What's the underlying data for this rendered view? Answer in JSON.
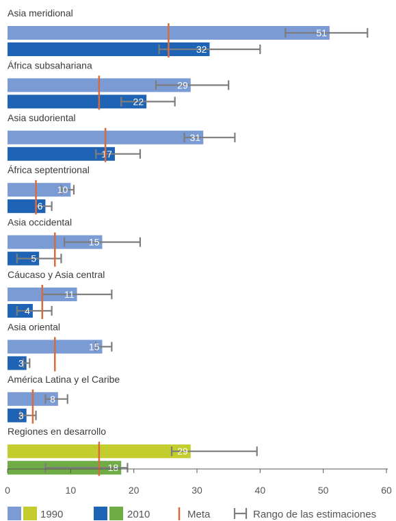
{
  "chart_data": {
    "type": "bar",
    "orientation": "horizontal",
    "xlim": [
      0,
      60
    ],
    "xticks": [
      0,
      10,
      20,
      30,
      40,
      50,
      60
    ],
    "grid": false,
    "legend_position": "bottom",
    "series": [
      {
        "key": "1990",
        "name": "1990",
        "colors": [
          "#7b9bd4",
          "#c3cd2d"
        ]
      },
      {
        "key": "2010",
        "name": "2010",
        "colors": [
          "#1f63b5",
          "#6fac46"
        ]
      }
    ],
    "legend": {
      "items": [
        "1990",
        "2010",
        "Meta",
        "Rango de las estimaciones"
      ]
    },
    "colors": {
      "bar_1990": "#7b9bd4",
      "bar_2010": "#1f63b5",
      "dev_1990": "#c3cd2d",
      "dev_2010": "#6fac46",
      "meta": "#d96a3b",
      "range": "#7d7d7d"
    },
    "groups": [
      {
        "label": "Asia meridional",
        "v1990": 51,
        "r1990": [
          44,
          57
        ],
        "v2010": 32,
        "r2010": [
          24,
          40
        ],
        "meta": 25.5
      },
      {
        "label": "África subsahariana",
        "v1990": 29,
        "r1990": [
          23.5,
          35
        ],
        "v2010": 22,
        "r2010": [
          18,
          26.5
        ],
        "meta": 14.5
      },
      {
        "label": "Asia sudoriental",
        "v1990": 31,
        "r1990": [
          28,
          36
        ],
        "v2010": 17,
        "r2010": [
          14,
          21
        ],
        "meta": 15.5
      },
      {
        "label": "África septentrional",
        "v1990": 10,
        "r1990": [
          8.5,
          10.5
        ],
        "v2010": 6,
        "r2010": [
          4.5,
          7
        ],
        "meta": 4.5
      },
      {
        "label": "Asia occidental",
        "v1990": 15,
        "r1990": [
          9,
          21
        ],
        "v2010": 5,
        "r2010": [
          1.5,
          8.5
        ],
        "meta": 7.5
      },
      {
        "label": "Cáucaso y Asia central",
        "v1990": 11,
        "r1990": [
          5.5,
          16.5
        ],
        "v2010": 4,
        "r2010": [
          1.5,
          7
        ],
        "meta": 5.5
      },
      {
        "label": "Asia oriental",
        "v1990": 15,
        "r1990": [
          14,
          16.5
        ],
        "v2010": 3,
        "r2010": [
          2.5,
          3.5
        ],
        "meta": 7.5
      },
      {
        "label": "América Latina y el Caribe",
        "v1990": 8,
        "r1990": [
          6,
          9.5
        ],
        "v2010": 3,
        "r2010": [
          2,
          4.5
        ],
        "meta": 4
      },
      {
        "label": "Regiones en desarrollo",
        "v1990": 29,
        "r1990": [
          26,
          39.5
        ],
        "v2010": 18,
        "r2010": [
          6,
          19
        ],
        "meta": 14.5,
        "aggregate": true
      }
    ]
  }
}
